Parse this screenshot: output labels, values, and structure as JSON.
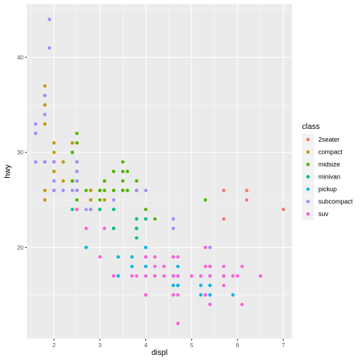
{
  "chart_data": {
    "type": "scatter",
    "title": "",
    "xlabel": "displ",
    "ylabel": "hwy",
    "xlim": [
      1.41,
      7.19
    ],
    "ylim": [
      10.4,
      45.6
    ],
    "x_ticks": [
      2,
      3,
      4,
      5,
      6,
      7
    ],
    "y_ticks": [
      20,
      30,
      40
    ],
    "grid": true,
    "legend": {
      "title": "class",
      "position": "right"
    },
    "series": [
      {
        "name": "2seater",
        "color": "#F8766D",
        "points": [
          [
            5.7,
            26
          ],
          [
            5.7,
            23
          ],
          [
            6.2,
            26
          ],
          [
            6.2,
            25
          ],
          [
            7.0,
            24
          ]
        ]
      },
      {
        "name": "compact",
        "color": "#C49A00",
        "points": [
          [
            1.8,
            29
          ],
          [
            1.8,
            29
          ],
          [
            2.0,
            31
          ],
          [
            2.0,
            30
          ],
          [
            2.8,
            26
          ],
          [
            2.8,
            26
          ],
          [
            3.1,
            27
          ],
          [
            1.8,
            26
          ],
          [
            1.8,
            25
          ],
          [
            2.0,
            28
          ],
          [
            2.0,
            29
          ],
          [
            2.8,
            25
          ],
          [
            2.8,
            25
          ],
          [
            3.1,
            25
          ],
          [
            3.1,
            25
          ],
          [
            2.2,
            27
          ],
          [
            2.2,
            29
          ],
          [
            2.4,
            31
          ],
          [
            2.4,
            31
          ],
          [
            3.0,
            26
          ],
          [
            3.0,
            26
          ],
          [
            1.8,
            33
          ],
          [
            1.8,
            35
          ],
          [
            1.8,
            37
          ],
          [
            1.8,
            35
          ],
          [
            2.0,
            29
          ],
          [
            2.0,
            26
          ],
          [
            2.5,
            29
          ],
          [
            2.5,
            26
          ],
          [
            2.4,
            31
          ],
          [
            2.4,
            27
          ],
          [
            2.8,
            24
          ]
        ]
      },
      {
        "name": "midsize",
        "color": "#53B400",
        "points": [
          [
            2.4,
            27
          ],
          [
            2.4,
            30
          ],
          [
            3.1,
            26
          ],
          [
            3.5,
            29
          ],
          [
            3.6,
            26
          ],
          [
            2.4,
            27
          ],
          [
            3.0,
            26
          ],
          [
            3.3,
            28
          ],
          [
            3.3,
            26
          ],
          [
            3.5,
            26
          ],
          [
            2.5,
            28
          ],
          [
            2.5,
            25
          ],
          [
            2.5,
            32
          ],
          [
            2.5,
            31
          ],
          [
            3.5,
            26
          ],
          [
            3.5,
            28
          ],
          [
            3.0,
            26
          ],
          [
            3.0,
            25
          ],
          [
            3.6,
            28
          ],
          [
            2.4,
            27
          ],
          [
            2.4,
            30
          ],
          [
            2.5,
            29
          ],
          [
            2.5,
            27
          ],
          [
            3.5,
            27
          ],
          [
            3.3,
            24
          ],
          [
            2.7,
            26
          ],
          [
            3.3,
            26
          ],
          [
            3.8,
            26
          ],
          [
            3.8,
            26
          ],
          [
            3.8,
            27
          ],
          [
            4.2,
            23
          ],
          [
            5.3,
            25
          ],
          [
            3.1,
            27
          ],
          [
            4.0,
            23
          ],
          [
            2.5,
            24
          ],
          [
            4.0,
            24
          ]
        ]
      },
      {
        "name": "minivan",
        "color": "#00C094",
        "points": [
          [
            2.4,
            24
          ],
          [
            3.0,
            24
          ],
          [
            3.3,
            22
          ],
          [
            3.3,
            24
          ],
          [
            3.3,
            22
          ],
          [
            3.8,
            21
          ],
          [
            3.8,
            22
          ],
          [
            3.8,
            22
          ],
          [
            3.8,
            23
          ],
          [
            4.0,
            20
          ],
          [
            4.0,
            23
          ]
        ]
      },
      {
        "name": "pickup",
        "color": "#00B6EB",
        "points": [
          [
            2.7,
            20
          ],
          [
            3.4,
            17
          ],
          [
            3.4,
            19
          ],
          [
            4.0,
            17
          ],
          [
            4.7,
            16
          ],
          [
            4.7,
            17
          ],
          [
            4.7,
            16
          ],
          [
            5.2,
            15
          ],
          [
            5.2,
            16
          ],
          [
            5.7,
            17
          ],
          [
            5.9,
            15
          ],
          [
            4.6,
            16
          ],
          [
            4.6,
            17
          ],
          [
            5.4,
            15
          ],
          [
            5.4,
            16
          ],
          [
            5.4,
            17
          ],
          [
            4.0,
            20
          ],
          [
            4.0,
            18
          ],
          [
            3.7,
            18
          ],
          [
            3.7,
            19
          ],
          [
            4.2,
            17
          ],
          [
            4.7,
            18
          ]
        ]
      },
      {
        "name": "subcompact",
        "color": "#A58AFF",
        "points": [
          [
            1.6,
            33
          ],
          [
            1.6,
            32
          ],
          [
            1.6,
            29
          ],
          [
            1.6,
            32
          ],
          [
            1.6,
            29
          ],
          [
            1.8,
            34
          ],
          [
            1.8,
            36
          ],
          [
            1.8,
            36
          ],
          [
            1.8,
            29
          ],
          [
            1.9,
            44
          ],
          [
            1.9,
            41
          ],
          [
            2.0,
            26
          ],
          [
            2.0,
            26
          ],
          [
            2.0,
            27
          ],
          [
            2.0,
            29
          ],
          [
            2.2,
            26
          ],
          [
            2.4,
            26
          ],
          [
            2.5,
            26
          ],
          [
            2.5,
            28
          ],
          [
            2.5,
            29
          ],
          [
            2.7,
            24
          ],
          [
            3.8,
            26
          ],
          [
            4.0,
            26
          ],
          [
            4.6,
            23
          ],
          [
            4.6,
            22
          ],
          [
            5.4,
            20
          ],
          [
            2.5,
            27
          ],
          [
            2.5,
            26
          ],
          [
            2.8,
            24
          ],
          [
            3.3,
            25
          ]
        ]
      },
      {
        "name": "suv",
        "color": "#FB61D7",
        "points": [
          [
            5.3,
            20
          ],
          [
            5.3,
            15
          ],
          [
            5.3,
            20
          ],
          [
            5.7,
            17
          ],
          [
            6.0,
            17
          ],
          [
            5.7,
            18
          ],
          [
            6.5,
            17
          ],
          [
            3.7,
            17
          ],
          [
            4.7,
            12
          ],
          [
            4.7,
            12
          ],
          [
            5.2,
            17
          ],
          [
            5.9,
            17
          ],
          [
            4.7,
            17
          ],
          [
            4.7,
            15
          ],
          [
            5.7,
            17
          ],
          [
            6.1,
            14
          ],
          [
            4.0,
            17
          ],
          [
            4.0,
            15
          ],
          [
            4.6,
            15
          ],
          [
            5.0,
            17
          ],
          [
            5.4,
            18
          ],
          [
            5.4,
            18
          ],
          [
            5.4,
            17
          ],
          [
            4.0,
            19
          ],
          [
            4.4,
            18
          ],
          [
            4.6,
            19
          ],
          [
            4.2,
            19
          ],
          [
            4.2,
            17
          ],
          [
            4.6,
            17
          ],
          [
            5.3,
            15
          ],
          [
            5.3,
            18
          ],
          [
            3.3,
            17
          ],
          [
            3.3,
            17
          ],
          [
            4.0,
            19
          ],
          [
            4.0,
            19
          ],
          [
            4.4,
            17
          ],
          [
            4.7,
            19
          ],
          [
            5.7,
            16
          ],
          [
            6.1,
            18
          ],
          [
            4.0,
            15
          ],
          [
            4.2,
            18
          ],
          [
            2.5,
            24
          ],
          [
            2.7,
            22
          ],
          [
            3.1,
            22
          ],
          [
            3.8,
            17
          ],
          [
            3.0,
            19
          ],
          [
            5.4,
            14
          ],
          [
            4.6,
            19
          ]
        ]
      }
    ]
  }
}
